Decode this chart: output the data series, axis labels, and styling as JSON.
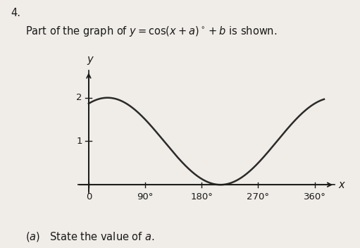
{
  "question_number": "4.",
  "title_text": "Part of the graph of $y = \\cos(x+a)^{\\circ}+b$ is shown.",
  "sub_question": "(a)   State the value of $a$.",
  "a_value": -30,
  "b_value": 1,
  "x_ticks": [
    0,
    90,
    180,
    270,
    360
  ],
  "x_tick_labels": [
    "0",
    "90°",
    "180°",
    "270°",
    "360°"
  ],
  "y_ticks": [
    1,
    2
  ],
  "y_tick_labels": [
    "1",
    "2"
  ],
  "curve_color": "#2a2a2a",
  "curve_linewidth": 1.8,
  "axis_color": "#1a1a1a",
  "background_color": "#f0ede8",
  "text_color": "#1a1a1a",
  "font_size_title": 10.5,
  "font_size_tick": 9.5,
  "font_size_label": 10.5,
  "font_size_sub": 10.5,
  "xlim": [
    -18,
    395
  ],
  "ylim": [
    -0.2,
    2.65
  ],
  "x_plot_max": 375
}
